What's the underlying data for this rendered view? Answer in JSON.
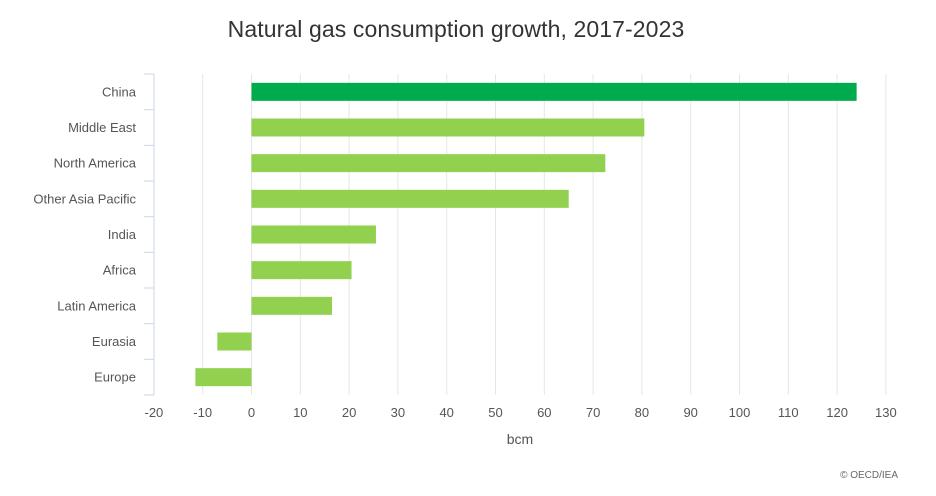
{
  "chart_data": {
    "type": "bar",
    "orientation": "horizontal",
    "title": "Natural gas consumption growth, 2017-2023",
    "xlabel": "bcm",
    "ylabel": "",
    "xlim": [
      -20,
      130
    ],
    "xticks": [
      -20,
      -10,
      0,
      10,
      20,
      30,
      40,
      50,
      60,
      70,
      80,
      90,
      100,
      110,
      120,
      130
    ],
    "grid": true,
    "legend": false,
    "categories": [
      "China",
      "Middle East",
      "North America",
      "Other Asia Pacific",
      "India",
      "Africa",
      "Latin America",
      "Eurasia",
      "Europe"
    ],
    "values": [
      124,
      80.5,
      72.5,
      65,
      25.5,
      20.5,
      16.5,
      -7,
      -11.5
    ],
    "colors": [
      "#00ab4e",
      "#92d050",
      "#92d050",
      "#92d050",
      "#92d050",
      "#92d050",
      "#92d050",
      "#92d050",
      "#92d050"
    ]
  },
  "credit": "© OECD/IEA"
}
